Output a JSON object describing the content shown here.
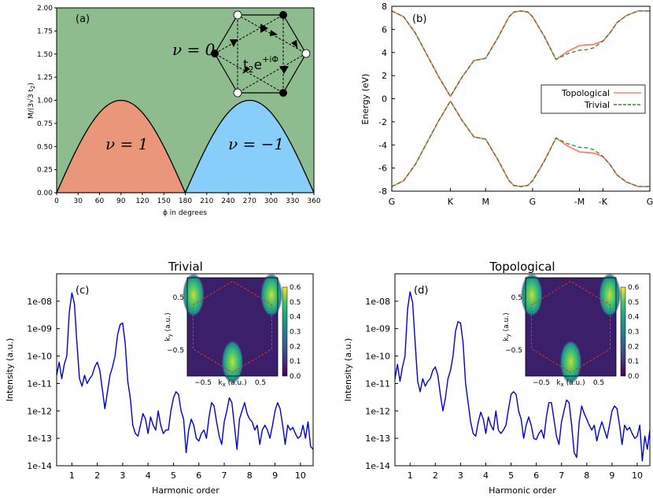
{
  "chart_data": [
    {
      "panel": "(a)",
      "type": "area",
      "xlabel": "ϕ in degrees",
      "ylabel": "M/(3√3 t₂)",
      "xlim": [
        0,
        360
      ],
      "ylim": [
        0,
        2
      ],
      "xticks": [
        0,
        30,
        60,
        90,
        120,
        150,
        180,
        210,
        240,
        270,
        300,
        330,
        360
      ],
      "yticks": [
        0.0,
        0.25,
        0.5,
        0.75,
        1.0,
        1.25,
        1.5,
        1.75,
        2.0
      ],
      "curve": "M = |sin ϕ|",
      "region_labels": [
        "ν = 0",
        "ν = 1",
        "ν = −1"
      ],
      "inset_label": "t₂e^{+iΦ}",
      "colors": {
        "background": "#8fbc8f",
        "nu_plus": "#e9967a",
        "nu_minus": "#87cefa"
      }
    },
    {
      "panel": "(b)",
      "type": "line",
      "ylabel": "Energy (eV)",
      "xticks": [
        "G",
        "K",
        "M",
        "G",
        "-M",
        "-K",
        "G"
      ],
      "ylim": [
        -8,
        8
      ],
      "yticks": [
        -8,
        -6,
        -4,
        -2,
        0,
        2,
        4,
        6,
        8
      ],
      "legend_position": "right",
      "series": [
        {
          "name": "Topological",
          "color": "#fa8072",
          "style": "solid",
          "x": [
            0,
            0.5,
            1,
            1.5,
            2,
            2.5,
            3,
            3.5,
            4,
            4.5,
            5,
            5.2,
            5.5,
            5.8,
            6,
            6.5,
            7,
            7.5,
            8,
            8.3,
            8.6,
            9,
            9.3,
            9.6,
            10,
            10.5,
            11
          ],
          "upper": [
            7.6,
            7.1,
            5.7,
            3.8,
            1.9,
            0.2,
            1.9,
            3.3,
            3.5,
            5.2,
            7.1,
            7.5,
            7.6,
            7.5,
            7.1,
            5.4,
            3.4,
            4.1,
            4.6,
            4.65,
            4.7,
            5.0,
            5.7,
            6.6,
            7.2,
            7.6,
            7.6
          ],
          "lower": [
            -7.6,
            -7.1,
            -5.7,
            -3.8,
            -1.9,
            -0.2,
            -1.9,
            -3.3,
            -3.5,
            -5.2,
            -7.1,
            -7.5,
            -7.6,
            -7.5,
            -7.1,
            -5.4,
            -3.4,
            -4.1,
            -4.6,
            -4.65,
            -4.7,
            -5.0,
            -5.7,
            -6.6,
            -7.2,
            -7.6,
            -7.6
          ]
        },
        {
          "name": "Trivial",
          "color": "#2e8b2e",
          "style": "dashed",
          "x": [
            0,
            0.5,
            1,
            1.5,
            2,
            2.5,
            3,
            3.5,
            4,
            4.5,
            5,
            5.2,
            5.5,
            5.8,
            6,
            6.5,
            7,
            7.5,
            8,
            8.3,
            8.6,
            9,
            9.3,
            9.6,
            10,
            10.5,
            11
          ],
          "upper": [
            7.6,
            7.1,
            5.7,
            3.8,
            1.9,
            0.2,
            1.9,
            3.3,
            3.5,
            5.2,
            7.1,
            7.5,
            7.6,
            7.5,
            7.1,
            5.4,
            3.4,
            3.9,
            4.2,
            4.25,
            4.4,
            5.0,
            5.7,
            6.6,
            7.2,
            7.6,
            7.6
          ],
          "lower": [
            -7.6,
            -7.1,
            -5.7,
            -3.8,
            -1.9,
            -0.2,
            -1.9,
            -3.3,
            -3.5,
            -5.2,
            -7.1,
            -7.5,
            -7.6,
            -7.5,
            -7.1,
            -5.4,
            -3.4,
            -3.9,
            -4.2,
            -4.25,
            -4.4,
            -5.0,
            -5.7,
            -6.6,
            -7.2,
            -7.6,
            -7.6
          ]
        }
      ]
    },
    {
      "panel": "(c)",
      "type": "line",
      "title": "Trivial",
      "xlabel": "Harmonic order",
      "ylabel": "Intensity (a.u.)",
      "yscale": "log",
      "ylim": [
        1e-14,
        1e-07
      ],
      "xlim": [
        0.4,
        10.5
      ],
      "yticks": [
        "1e-14",
        "1e-13",
        "1e-12",
        "1e-11",
        "1e-10",
        "1e-09",
        "1e-08"
      ],
      "xticks": [
        1,
        2,
        3,
        4,
        5,
        6,
        7,
        8,
        9,
        10
      ],
      "series": [
        {
          "color": "#0000cd",
          "x": [
            0.4,
            0.5,
            0.6,
            0.7,
            0.8,
            0.9,
            1.0,
            1.1,
            1.2,
            1.3,
            1.4,
            1.5,
            1.6,
            1.7,
            1.8,
            1.9,
            2.0,
            2.1,
            2.2,
            2.3,
            2.4,
            2.5,
            2.6,
            2.7,
            2.8,
            2.9,
            3.0,
            3.1,
            3.2,
            3.3,
            3.4,
            3.5,
            3.6,
            3.7,
            3.8,
            3.9,
            4.0,
            4.1,
            4.2,
            4.3,
            4.4,
            4.5,
            4.6,
            4.7,
            4.8,
            4.9,
            5.0,
            5.1,
            5.2,
            5.3,
            5.4,
            5.5,
            5.6,
            5.7,
            5.8,
            5.9,
            6.0,
            6.1,
            6.2,
            6.3,
            6.4,
            6.5,
            6.6,
            6.7,
            6.8,
            6.9,
            7.0,
            7.1,
            7.2,
            7.3,
            7.4,
            7.5,
            7.6,
            7.7,
            7.8,
            7.9,
            8.0,
            8.1,
            8.2,
            8.3,
            8.4,
            8.5,
            8.6,
            8.7,
            8.8,
            8.9,
            9.0,
            9.1,
            9.2,
            9.3,
            9.4,
            9.5,
            9.6,
            9.7,
            9.8,
            9.9,
            10.0,
            10.1,
            10.2,
            10.3,
            10.4,
            10.5
          ],
          "y": [
            2e-11,
            6e-11,
            1.5e-11,
            5e-11,
            1e-10,
            4e-09,
            2e-08,
            8e-09,
            3e-10,
            1.5e-11,
            8e-12,
            2e-11,
            1e-11,
            1.5e-11,
            2e-11,
            4e-11,
            6e-11,
            3e-11,
            6e-12,
            1.2e-12,
            5e-12,
            2e-11,
            4e-11,
            1e-10,
            6e-10,
            1.4e-09,
            1.6e-09,
            3e-10,
            1.2e-11,
            3e-12,
            3e-13,
            1.5e-13,
            1.2e-13,
            3e-13,
            8e-13,
            5e-13,
            1.5e-13,
            6e-13,
            3e-13,
            2e-13,
            1e-12,
            3e-13,
            1.5e-13,
            2e-13,
            2e-13,
            1e-12,
            3e-12,
            5e-12,
            4e-12,
            1e-12,
            5e-13,
            3e-14,
            2e-13,
            5e-13,
            3e-13,
            1e-13,
            8e-14,
            1.5e-13,
            2e-13,
            1e-13,
            6e-13,
            2e-12,
            1.5e-12,
            4e-13,
            1.2e-13,
            6e-14,
            4e-13,
            1e-12,
            3e-12,
            2e-12,
            3e-13,
            4e-14,
            5e-13,
            1e-12,
            2e-12,
            8e-13,
            5e-13,
            4e-13,
            2e-13,
            3e-13,
            6e-14,
            2e-13,
            3e-13,
            2e-13,
            1e-13,
            3e-13,
            1e-12,
            2e-12,
            1.2e-12,
            3e-13,
            6e-14,
            3e-13,
            2e-13,
            2.5e-13,
            1.5e-13,
            1e-13,
            1.2e-13,
            3e-13,
            1e-13,
            4e-13,
            5e-14,
            4e-14
          ]
        }
      ],
      "inset": {
        "type": "heatmap",
        "xlabel": "k_x (a.u.)",
        "ylabel": "k_y",
        "ylabel_unit": "(a.u.)",
        "xticks": [
          "−0.5",
          "0.5"
        ],
        "yticks": [
          "0.5",
          "−0.5"
        ],
        "colorbar_ticks": [
          "0.0",
          "0.1",
          "0.2",
          "0.3",
          "0.4",
          "0.5",
          "0.6"
        ],
        "colormap": "viridis"
      }
    },
    {
      "panel": "(d)",
      "type": "line",
      "title": "Topological",
      "xlabel": "Harmonic order",
      "ylabel": "Intensity (a.u.)",
      "yscale": "log",
      "ylim": [
        1e-14,
        1e-07
      ],
      "xlim": [
        0.4,
        10.5
      ],
      "yticks": [
        "1e-14",
        "1e-13",
        "1e-12",
        "1e-11",
        "1e-10",
        "1e-09",
        "1e-08"
      ],
      "xticks": [
        1,
        2,
        3,
        4,
        5,
        6,
        7,
        8,
        9,
        10
      ],
      "series": [
        {
          "color": "#0000cd",
          "x": [
            0.4,
            0.5,
            0.6,
            0.7,
            0.8,
            0.9,
            1.0,
            1.1,
            1.2,
            1.3,
            1.4,
            1.5,
            1.6,
            1.7,
            1.8,
            1.9,
            2.0,
            2.1,
            2.2,
            2.3,
            2.4,
            2.5,
            2.6,
            2.7,
            2.8,
            2.9,
            3.0,
            3.1,
            3.2,
            3.3,
            3.4,
            3.5,
            3.6,
            3.7,
            3.8,
            3.9,
            4.0,
            4.1,
            4.2,
            4.3,
            4.4,
            4.5,
            4.6,
            4.7,
            4.8,
            4.9,
            5.0,
            5.1,
            5.2,
            5.3,
            5.4,
            5.5,
            5.6,
            5.7,
            5.8,
            5.9,
            6.0,
            6.1,
            6.2,
            6.3,
            6.4,
            6.5,
            6.6,
            6.7,
            6.8,
            6.9,
            7.0,
            7.1,
            7.2,
            7.3,
            7.4,
            7.5,
            7.6,
            7.7,
            7.8,
            7.9,
            8.0,
            8.1,
            8.2,
            8.3,
            8.4,
            8.5,
            8.6,
            8.7,
            8.8,
            8.9,
            9.0,
            9.1,
            9.2,
            9.3,
            9.4,
            9.5,
            9.6,
            9.7,
            9.8,
            9.9,
            10.0,
            10.1,
            10.2,
            10.3,
            10.4,
            10.5
          ],
          "y": [
            1.5e-11,
            5e-11,
            1.2e-11,
            4e-11,
            1e-10,
            5e-09,
            2.2e-08,
            9e-09,
            3e-10,
            1.2e-11,
            5e-12,
            1.5e-11,
            8e-12,
            1.2e-11,
            1.5e-11,
            3e-11,
            4e-11,
            2e-11,
            4e-12,
            1e-12,
            3e-12,
            1.5e-11,
            3e-11,
            1e-10,
            8e-10,
            1.8e-09,
            1.6e-09,
            3e-10,
            1e-11,
            2e-12,
            4e-13,
            1.5e-13,
            1.2e-13,
            4e-13,
            9e-13,
            5e-13,
            1.5e-13,
            6e-13,
            3e-13,
            2e-13,
            1e-12,
            2e-13,
            1.5e-13,
            2e-13,
            3e-13,
            1.2e-12,
            4e-12,
            5e-12,
            4e-12,
            1e-12,
            5e-13,
            1e-13,
            3e-13,
            6e-13,
            3e-13,
            1e-13,
            9e-14,
            1.5e-13,
            2e-13,
            1e-13,
            6e-13,
            2e-12,
            2e-12,
            5e-13,
            1.2e-13,
            6e-14,
            4e-13,
            1e-12,
            2.5e-12,
            2e-12,
            3e-13,
            3e-14,
            2e-14,
            4e-13,
            1.5e-12,
            8e-13,
            5e-13,
            3e-13,
            2e-13,
            3e-13,
            8e-14,
            2e-13,
            4e-13,
            2e-13,
            1e-13,
            3e-13,
            1e-12,
            1.5e-12,
            1.2e-12,
            3e-13,
            6e-14,
            3e-13,
            2e-13,
            2.5e-13,
            1.5e-13,
            1e-13,
            1.2e-13,
            3e-13,
            1.5e-14,
            1.2e-13,
            4e-14,
            2e-13
          ]
        }
      ],
      "inset": {
        "type": "heatmap",
        "xlabel": "k_x (a.u.)",
        "ylabel": "k_y",
        "ylabel_unit": "(a.u.)",
        "xticks": [
          "−0.5",
          "0.5"
        ],
        "yticks": [
          "0.5",
          "−0.5"
        ],
        "colorbar_ticks": [
          "0.0",
          "0.1",
          "0.2",
          "0.3",
          "0.4",
          "0.5",
          "0.6"
        ],
        "colormap": "viridis"
      }
    }
  ],
  "labels": {
    "a_tag": "(a)",
    "b_tag": "(b)",
    "c_tag": "(c)",
    "d_tag": "(d)",
    "a_xlabel": "ϕ in degrees",
    "nu0": "ν = 0",
    "nu1": "ν = 1",
    "num1": "ν = −1",
    "t2_base": "t",
    "t2_sub": "2",
    "t2_e": "e",
    "t2_exp": "+iΦ",
    "b_ylabel": "Energy (eV)",
    "legend_topo": "Topological",
    "legend_triv": "Trivial",
    "c_title": "Trivial",
    "d_title": "Topological",
    "hx_label": "Harmonic order",
    "intensity": "Intensity (a.u.)",
    "kx_label": "k",
    "kx_sub": "x",
    "kx_unit": " (a.u.)",
    "ky_label": "k",
    "ky_sub": "y",
    "ky_unit": "(a.u.)",
    "a_ylabel_M": "M/(3√3 t",
    "a_ylabel_sub": "2",
    "a_ylabel_end": ")"
  }
}
